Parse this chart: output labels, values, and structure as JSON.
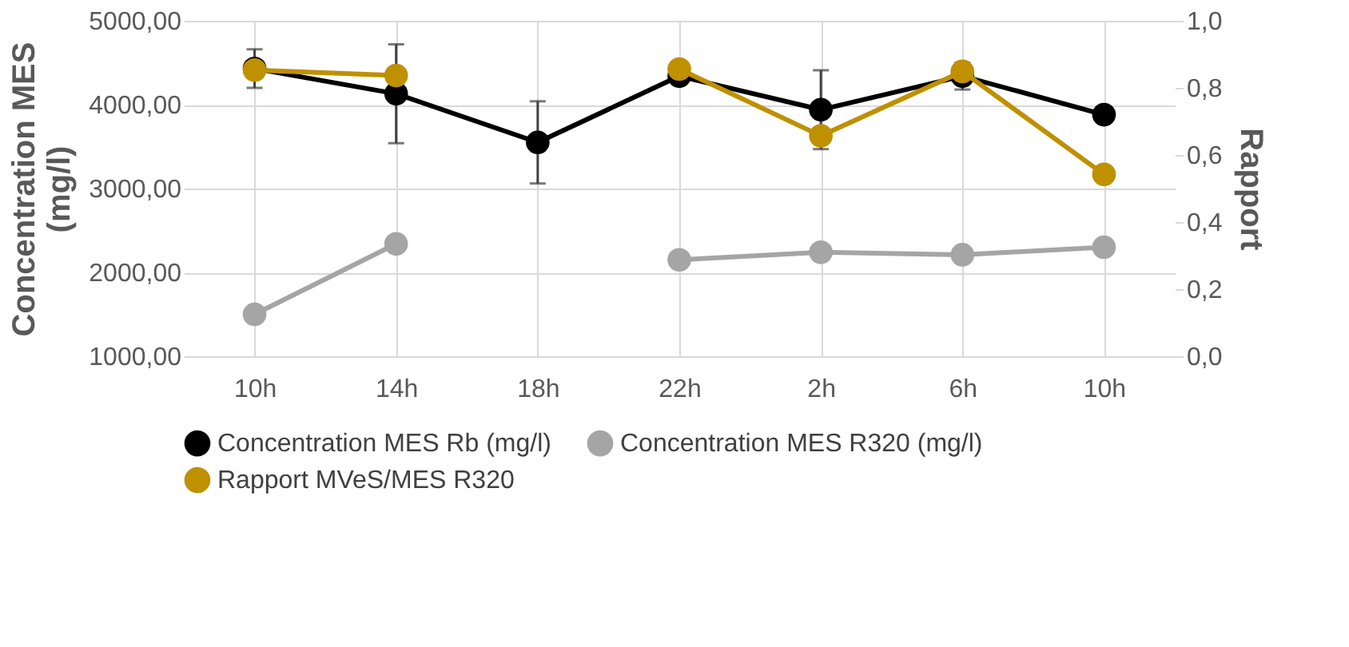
{
  "chart_data": {
    "type": "line",
    "ylabel": "Concentration MES (mg/l)",
    "y2label": "Rapport",
    "categories": [
      "10h",
      "14h",
      "18h",
      "22h",
      "2h",
      "6h",
      "10h"
    ],
    "series": [
      {
        "name": "Concentration MES Rb (mg/l)",
        "color": "#000000",
        "values": [
          4430,
          4130,
          3550,
          4340,
          3940,
          4340,
          3880
        ],
        "errors": [
          230,
          590,
          490,
          null,
          470,
          160,
          null
        ]
      },
      {
        "name": "Concentration MES R320 (mg/l)",
        "color": "#a5a5a5",
        "values": [
          1500,
          2340,
          null,
          2150,
          2240,
          2210,
          2300
        ]
      },
      {
        "name": "Rapport MVeS/MES R320",
        "color": "#bf9000",
        "axis": "y2",
        "values": [
          0.853,
          0.837,
          null,
          0.856,
          0.657,
          0.849,
          0.542
        ]
      }
    ],
    "ylim": [
      1000,
      5000
    ],
    "yticks": [
      {
        "value": 1000,
        "label": "1000,00"
      },
      {
        "value": 2000,
        "label": "2000,00"
      },
      {
        "value": 3000,
        "label": "3000,00"
      },
      {
        "value": 4000,
        "label": "4000,00"
      },
      {
        "value": 5000,
        "label": "5000,00"
      }
    ],
    "y2lim": [
      0,
      1
    ],
    "y2ticks": [
      {
        "value": 0,
        "label": "0,0"
      },
      {
        "value": 0.2,
        "label": "0,2"
      },
      {
        "value": 0.4,
        "label": "0,4"
      },
      {
        "value": 0.6,
        "label": "0,6"
      },
      {
        "value": 0.8,
        "label": "0,8"
      },
      {
        "value": 1,
        "label": "1,0"
      }
    ],
    "grid": true,
    "legend": "bottom",
    "marker": "circle",
    "line_style": "solid"
  }
}
